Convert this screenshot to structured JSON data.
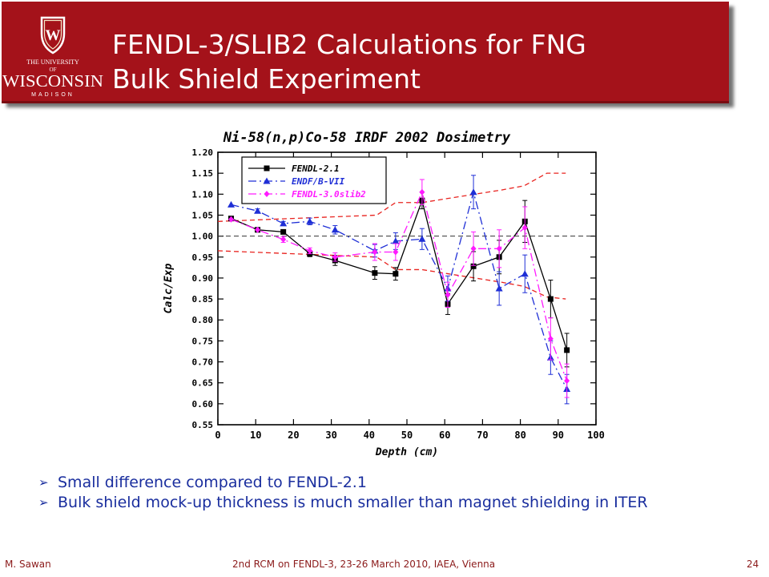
{
  "header": {
    "title_line1": "FENDL-3/SLIB2 Calculations for FNG",
    "title_line2": "Bulk Shield Experiment",
    "logo": {
      "line1": "THE UNIVERSITY",
      "line2": "OF",
      "line3": "WISCONSIN",
      "line4": "MADISON",
      "crest_letter": "W"
    },
    "banner_color": "#a4121a"
  },
  "chart_data": {
    "type": "line",
    "title": "Ni-58(n,p)Co-58 IRDF 2002 Dosimetry",
    "xlabel": "Depth (cm)",
    "ylabel": "Calc/Exp",
    "xlim": [
      0,
      100
    ],
    "ylim": [
      0.55,
      1.2
    ],
    "xticks": [
      0,
      10,
      20,
      30,
      40,
      50,
      60,
      70,
      80,
      90,
      100
    ],
    "yticks": [
      0.55,
      0.6,
      0.65,
      0.7,
      0.75,
      0.8,
      0.85,
      0.9,
      0.95,
      1.0,
      1.05,
      1.1,
      1.15,
      1.2
    ],
    "xtick_labels": [
      "0",
      "10",
      "20",
      "30",
      "40",
      "50",
      "60",
      "70",
      "80",
      "90",
      "100"
    ],
    "ytick_labels": [
      "0.55",
      "0.60",
      "0.65",
      "0.70",
      "0.75",
      "0.80",
      "0.85",
      "0.90",
      "0.95",
      "1.00",
      "1.05",
      "1.10",
      "1.15",
      "1.20"
    ],
    "grid": false,
    "legend_position": "top-left",
    "reference_line": 1.0,
    "series": [
      {
        "name": "FENDL-2.1",
        "color": "#000000",
        "marker": "square",
        "dash": "solid",
        "x": [
          3.5,
          10.5,
          17.3,
          24.3,
          31,
          41.5,
          47,
          54,
          60.8,
          67.6,
          74.4,
          81.2,
          88,
          92.3
        ],
        "y": [
          1.042,
          1.015,
          1.01,
          0.958,
          0.942,
          0.912,
          0.91,
          1.085,
          0.838,
          0.928,
          0.95,
          1.035,
          0.85,
          0.728
        ],
        "err": [
          0.0,
          0.0,
          0.0,
          0.007,
          0.012,
          0.015,
          0.015,
          0.02,
          0.025,
          0.035,
          0.04,
          0.05,
          0.045,
          0.04
        ]
      },
      {
        "name": "ENDF/B-VII",
        "color": "#1f2fd6",
        "marker": "triangle",
        "dash": "dashdot",
        "x": [
          3.5,
          10.5,
          17.3,
          24.3,
          31,
          41.5,
          47,
          54,
          60.8,
          67.6,
          74.4,
          81.2,
          88,
          92.3
        ],
        "y": [
          1.075,
          1.06,
          1.03,
          1.035,
          1.015,
          0.965,
          0.988,
          0.993,
          0.875,
          1.105,
          0.875,
          0.91,
          0.71,
          0.635
        ],
        "err": [
          0.0,
          0.005,
          0.005,
          0.008,
          0.01,
          0.015,
          0.02,
          0.025,
          0.03,
          0.04,
          0.04,
          0.045,
          0.04,
          0.035
        ]
      },
      {
        "name": "FENDL-3.0slib2",
        "color": "#ff1aff",
        "marker": "diamond",
        "dash": "dashdot",
        "x": [
          3.5,
          10.5,
          17.3,
          24.3,
          31,
          41.5,
          47,
          54,
          60.8,
          67.6,
          74.4,
          81.2,
          88,
          92.3
        ],
        "y": [
          1.04,
          1.015,
          0.992,
          0.965,
          0.95,
          0.962,
          0.962,
          1.105,
          0.86,
          0.97,
          0.97,
          1.02,
          0.755,
          0.655
        ],
        "err": [
          0.0,
          0.0,
          0.007,
          0.007,
          0.01,
          0.02,
          0.02,
          0.03,
          0.03,
          0.04,
          0.045,
          0.05,
          0.05,
          0.04
        ]
      }
    ],
    "band": {
      "color": "#e8231f",
      "upper": {
        "x": [
          0,
          42,
          47,
          54,
          61,
          68,
          75,
          81,
          87,
          92
        ],
        "y": [
          1.035,
          1.05,
          1.08,
          1.08,
          1.09,
          1.1,
          1.11,
          1.12,
          1.15,
          1.15
        ]
      },
      "lower": {
        "x": [
          0,
          42,
          47,
          54,
          61,
          68,
          75,
          81,
          87,
          92
        ],
        "y": [
          0.965,
          0.95,
          0.92,
          0.92,
          0.91,
          0.9,
          0.89,
          0.88,
          0.855,
          0.85
        ]
      }
    }
  },
  "bullets": [
    "Small difference compared to FENDL-2.1",
    "Bulk shield mock-up thickness is much smaller than magnet shielding in ITER"
  ],
  "footer": {
    "author": "M. Sawan",
    "event": "2nd RCM on FENDL-3,  23-26 March 2010, IAEA, Vienna",
    "page": "24"
  }
}
